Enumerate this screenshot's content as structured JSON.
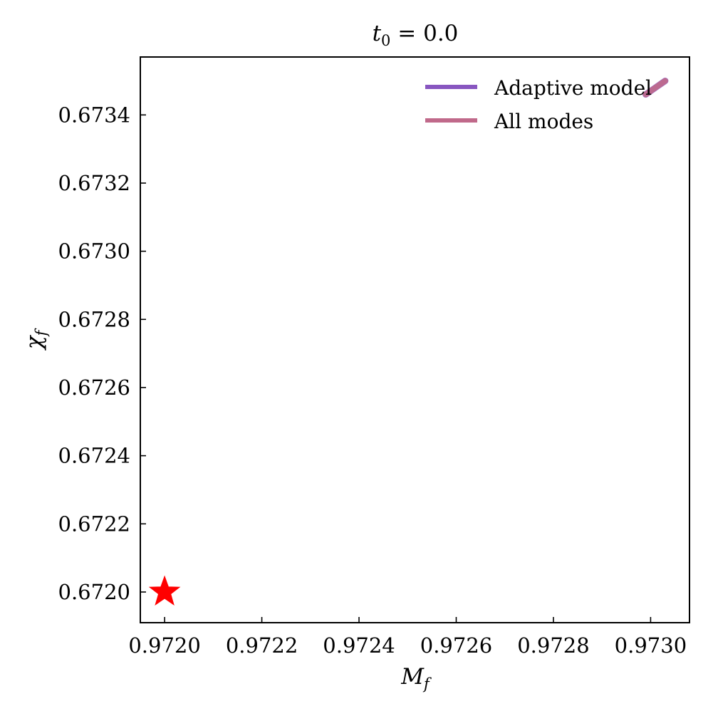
{
  "chart_data": {
    "type": "scatter",
    "title": {
      "main": "t",
      "sub": "0",
      "rest": " = 0.0"
    },
    "xlabel": {
      "main": "M",
      "sub": "f"
    },
    "ylabel": {
      "main": "χ",
      "sub": "f"
    },
    "xlim": [
      0.97195,
      0.97308
    ],
    "ylim": [
      0.67191,
      0.67357
    ],
    "xticks": [
      0.972,
      0.9722,
      0.9724,
      0.9726,
      0.9728,
      0.973
    ],
    "xtick_labels": [
      "0.9720",
      "0.9722",
      "0.9724",
      "0.9726",
      "0.9728",
      "0.9730"
    ],
    "yticks": [
      0.672,
      0.6722,
      0.6724,
      0.6726,
      0.6728,
      0.673,
      0.6732,
      0.6734
    ],
    "ytick_labels": [
      "0.6720",
      "0.6722",
      "0.6724",
      "0.6726",
      "0.6728",
      "0.6730",
      "0.6732",
      "0.6734"
    ],
    "grid": false,
    "legend_position": "top-right",
    "series": [
      {
        "name": "Adaptive model",
        "color": "#8856c0",
        "kind": "posterior-contour",
        "x": [
          0.97299,
          0.97301,
          0.97303
        ],
        "y": [
          0.67346,
          0.67348,
          0.6735
        ]
      },
      {
        "name": "All modes",
        "color": "#c0698a",
        "kind": "posterior-contour",
        "x": [
          0.97299,
          0.97301,
          0.97303
        ],
        "y": [
          0.67346,
          0.67348,
          0.6735
        ]
      }
    ],
    "true_value": {
      "x": 0.972,
      "y": 0.672,
      "marker": "star",
      "color": "#ff0000"
    }
  }
}
